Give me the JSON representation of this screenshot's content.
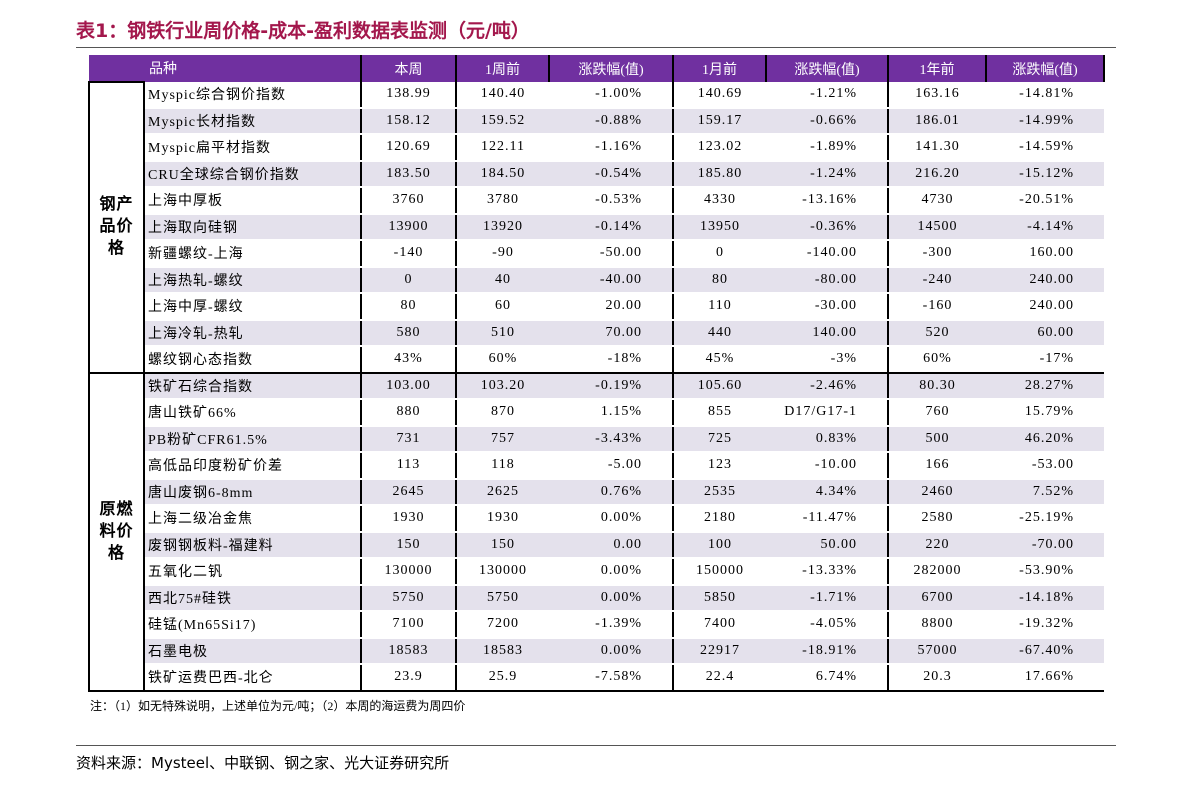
{
  "header": {
    "title": "表1：钢铁行业周价格-成本-盈利数据表监测（元/吨）"
  },
  "table": {
    "columns": [
      "品种",
      "本周",
      "1周前",
      "涨跌幅(值)",
      "1月前",
      "涨跌幅(值)",
      "1年前",
      "涨跌幅(值)"
    ],
    "groups": [
      {
        "label": "钢产品价格",
        "rows": [
          [
            "Myspic综合钢价指数",
            "138.99",
            "140.40",
            "-1.00%",
            "140.69",
            "-1.21%",
            "163.16",
            "-14.81%"
          ],
          [
            "Myspic长材指数",
            "158.12",
            "159.52",
            "-0.88%",
            "159.17",
            "-0.66%",
            "186.01",
            "-14.99%"
          ],
          [
            "Myspic扁平材指数",
            "120.69",
            "122.11",
            "-1.16%",
            "123.02",
            "-1.89%",
            "141.30",
            "-14.59%"
          ],
          [
            "CRU全球综合钢价指数",
            "183.50",
            "184.50",
            "-0.54%",
            "185.80",
            "-1.24%",
            "216.20",
            "-15.12%"
          ],
          [
            "上海中厚板",
            "3760",
            "3780",
            "-0.53%",
            "4330",
            "-13.16%",
            "4730",
            "-20.51%"
          ],
          [
            "上海取向硅钢",
            "13900",
            "13920",
            "-0.14%",
            "13950",
            "-0.36%",
            "14500",
            "-4.14%"
          ],
          [
            "新疆螺纹-上海",
            "-140",
            "-90",
            "-50.00",
            "0",
            "-140.00",
            "-300",
            "160.00"
          ],
          [
            "上海热轧-螺纹",
            "0",
            "40",
            "-40.00",
            "80",
            "-80.00",
            "-240",
            "240.00"
          ],
          [
            "上海中厚-螺纹",
            "80",
            "60",
            "20.00",
            "110",
            "-30.00",
            "-160",
            "240.00"
          ],
          [
            "上海冷轧-热轧",
            "580",
            "510",
            "70.00",
            "440",
            "140.00",
            "520",
            "60.00"
          ],
          [
            "螺纹钢心态指数",
            "43%",
            "60%",
            "-18%",
            "45%",
            "-3%",
            "60%",
            "-17%"
          ]
        ]
      },
      {
        "label": "原燃料价格",
        "rows": [
          [
            "铁矿石综合指数",
            "103.00",
            "103.20",
            "-0.19%",
            "105.60",
            "-2.46%",
            "80.30",
            "28.27%"
          ],
          [
            "唐山铁矿66%",
            "880",
            "870",
            "1.15%",
            "855",
            "D17/G17-1",
            "760",
            "15.79%"
          ],
          [
            "PB粉矿CFR61.5%",
            "731",
            "757",
            "-3.43%",
            "725",
            "0.83%",
            "500",
            "46.20%"
          ],
          [
            "高低品印度粉矿价差",
            "113",
            "118",
            "-5.00",
            "123",
            "-10.00",
            "166",
            "-53.00"
          ],
          [
            "唐山废钢6-8mm",
            "2645",
            "2625",
            "0.76%",
            "2535",
            "4.34%",
            "2460",
            "7.52%"
          ],
          [
            "上海二级冶金焦",
            "1930",
            "1930",
            "0.00%",
            "2180",
            "-11.47%",
            "2580",
            "-25.19%"
          ],
          [
            "废钢钢板料-福建料",
            "150",
            "150",
            "0.00",
            "100",
            "50.00",
            "220",
            "-70.00"
          ],
          [
            "五氧化二钒",
            "130000",
            "130000",
            "0.00%",
            "150000",
            "-13.33%",
            "282000",
            "-53.90%"
          ],
          [
            "西北75#硅铁",
            "5750",
            "5750",
            "0.00%",
            "5850",
            "-1.71%",
            "6700",
            "-14.18%"
          ],
          [
            "硅锰(Mn65Si17)",
            "7100",
            "7200",
            "-1.39%",
            "7400",
            "-4.05%",
            "8800",
            "-19.32%"
          ],
          [
            "石墨电极",
            "18583",
            "18583",
            "0.00%",
            "22917",
            "-18.91%",
            "57000",
            "-67.40%"
          ],
          [
            "铁矿运费巴西-北仑",
            "23.9",
            "25.9",
            "-7.58%",
            "22.4",
            "6.74%",
            "20.3",
            "17.66%"
          ]
        ]
      }
    ]
  },
  "footer": {
    "note": "注：（1）如无特殊说明，上述单位为元/吨；（2）本周的海运费为周四价",
    "source": "资料来源：Mysteel、中联钢、钢之家、光大证券研究所"
  }
}
